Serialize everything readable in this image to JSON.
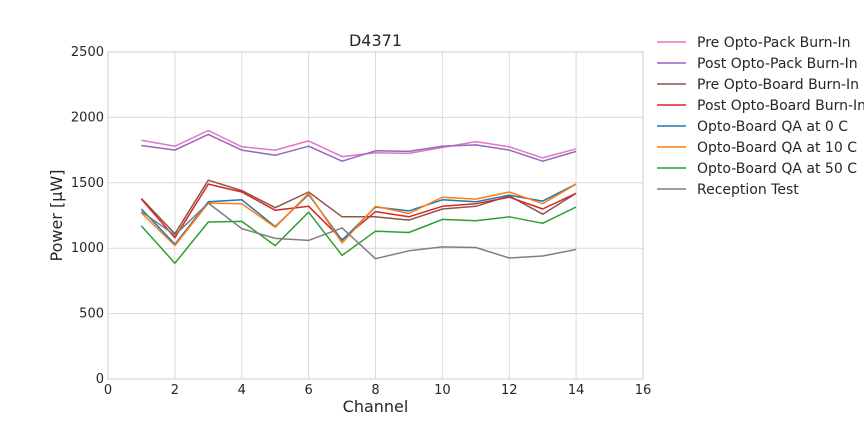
{
  "chart_data": {
    "type": "line",
    "title": "D4371",
    "xlabel": "Channel",
    "ylabel": "Power [μW]",
    "xlim": [
      0,
      16
    ],
    "ylim": [
      0,
      2500
    ],
    "xticks": [
      "0",
      "2",
      "4",
      "6",
      "8",
      "10",
      "12",
      "14",
      "16"
    ],
    "yticks": [
      "0",
      "500",
      "1000",
      "1500",
      "2000",
      "2500"
    ],
    "grid": true,
    "legend_position": "outside-right",
    "x": [
      1,
      2,
      3,
      4,
      5,
      6,
      7,
      8,
      9,
      10,
      11,
      12,
      13,
      14
    ],
    "series": [
      {
        "name": "Pre Opto-Pack Burn-In",
        "color": "#e377c2",
        "values": [
          1825,
          1780,
          1900,
          1775,
          1750,
          1820,
          1700,
          1730,
          1725,
          1770,
          1815,
          1775,
          1690,
          1760
        ]
      },
      {
        "name": "Post Opto-Pack Burn-In",
        "color": "#9467bd",
        "values": [
          1785,
          1750,
          1870,
          1750,
          1710,
          1780,
          1665,
          1745,
          1740,
          1780,
          1790,
          1750,
          1665,
          1740
        ]
      },
      {
        "name": "Pre Opto-Board Burn-In",
        "color": "#8c564b",
        "values": [
          1380,
          1110,
          1520,
          1440,
          1310,
          1430,
          1240,
          1240,
          1215,
          1300,
          1320,
          1400,
          1260,
          1420
        ]
      },
      {
        "name": "Post Opto-Board Burn-In",
        "color": "#d62728",
        "values": [
          1375,
          1080,
          1490,
          1430,
          1290,
          1320,
          1065,
          1280,
          1240,
          1320,
          1340,
          1390,
          1300,
          1420
        ]
      },
      {
        "name": "Opto-Board QA at 0 C",
        "color": "#1f77b4",
        "values": [
          1300,
          1030,
          1355,
          1370,
          1165,
          1410,
          1060,
          1315,
          1285,
          1370,
          1355,
          1405,
          1360,
          1490
        ]
      },
      {
        "name": "Opto-Board QA at 10 C",
        "color": "#ff7f0e",
        "values": [
          1270,
          1020,
          1345,
          1340,
          1160,
          1420,
          1040,
          1320,
          1265,
          1390,
          1375,
          1430,
          1340,
          1490
        ]
      },
      {
        "name": "Opto-Board QA at 50 C",
        "color": "#2ca02c",
        "values": [
          1170,
          885,
          1200,
          1205,
          1020,
          1275,
          945,
          1130,
          1120,
          1220,
          1210,
          1240,
          1190,
          1315
        ]
      },
      {
        "name": "Reception Test",
        "color": "#7f7f7f",
        "values": [
          1280,
          1100,
          1345,
          1150,
          1075,
          1060,
          1155,
          920,
          980,
          1010,
          1005,
          925,
          940,
          990
        ]
      }
    ]
  }
}
